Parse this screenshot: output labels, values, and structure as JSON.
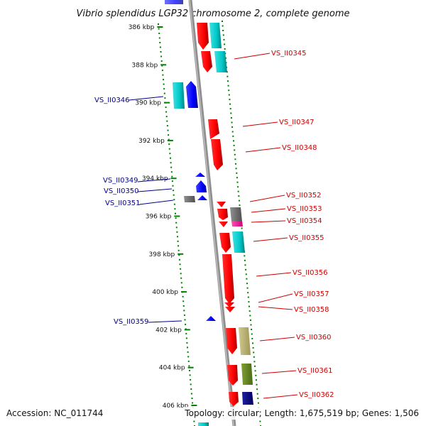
{
  "title": "Vibrio splendidus LGP32 chromosome 2, complete genome",
  "accession": "Accession: NC_011744",
  "topology": "Topology: circular; Length: 1,675,519 bp; Genes: 1,506",
  "kbp_labels": [
    "386 kbp",
    "388 kbp",
    "390 kbp",
    "392 kbp",
    "394 kbp",
    "396 kbp",
    "398 kbp",
    "400 kbp",
    "402 kbp",
    "404 kbp",
    "406 kbp"
  ],
  "colors": {
    "red": "#ff0000",
    "blue": "#0000ff",
    "cyan": "#00c8c8",
    "gray": "#707070",
    "magenta": "#ff1493",
    "olive": "#b8b070",
    "green": "#6b8e23",
    "navy": "#000080",
    "tick": "#008000"
  },
  "gene_labels": [
    {
      "text": "VS_II0345",
      "side": "right"
    },
    {
      "text": "VS_II0346",
      "side": "left"
    },
    {
      "text": "VS_II0347",
      "side": "right"
    },
    {
      "text": "VS_II0348",
      "side": "right"
    },
    {
      "text": "VS_II0349",
      "side": "left"
    },
    {
      "text": "VS_II0350",
      "side": "left"
    },
    {
      "text": "VS_II0351",
      "side": "left"
    },
    {
      "text": "VS_II0352",
      "side": "right"
    },
    {
      "text": "VS_II0353",
      "side": "right"
    },
    {
      "text": "VS_II0354",
      "side": "right"
    },
    {
      "text": "VS_II0355",
      "side": "right"
    },
    {
      "text": "VS_II0356",
      "side": "right"
    },
    {
      "text": "VS_II0357",
      "side": "right"
    },
    {
      "text": "VS_II0358",
      "side": "right"
    },
    {
      "text": "VS_II0359",
      "side": "left"
    },
    {
      "text": "VS_II0360",
      "side": "right"
    },
    {
      "text": "VS_II0361",
      "side": "right"
    },
    {
      "text": "VS_II0362",
      "side": "right"
    }
  ]
}
